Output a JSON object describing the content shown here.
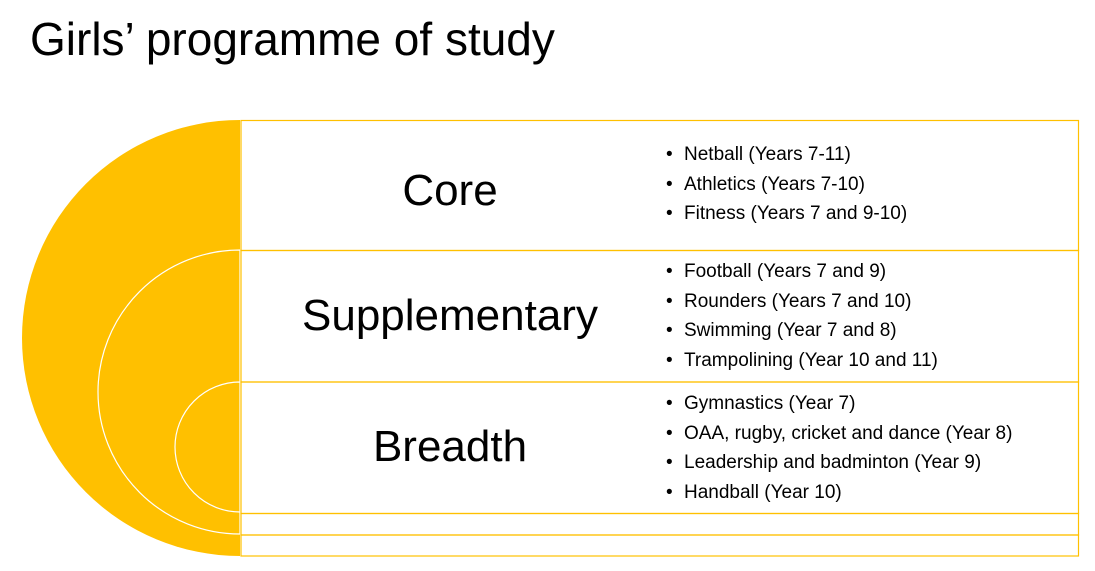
{
  "title": "Girls’ programme of study",
  "colors": {
    "accent": "#FFC000",
    "line": "#FFC000",
    "background": "#FFFFFF",
    "text": "#000000"
  },
  "sections": [
    {
      "label": "Core",
      "items": [
        "Netball (Years 7-11)",
        "Athletics (Years 7-10)",
        "Fitness (Years 7 and 9-10)"
      ]
    },
    {
      "label": "Supplementary",
      "items": [
        "Football (Years 7 and 9)",
        "Rounders (Years 7 and 10)",
        "Swimming (Year 7 and 8)",
        "Trampolining (Year 10 and 11)"
      ]
    },
    {
      "label": "Breadth",
      "items": [
        "Gymnastics (Year 7)",
        "OAA, rugby, cricket and dance (Year 8)",
        "Leadership and badminton (Year 9)",
        "Handball (Year 10)"
      ]
    }
  ]
}
